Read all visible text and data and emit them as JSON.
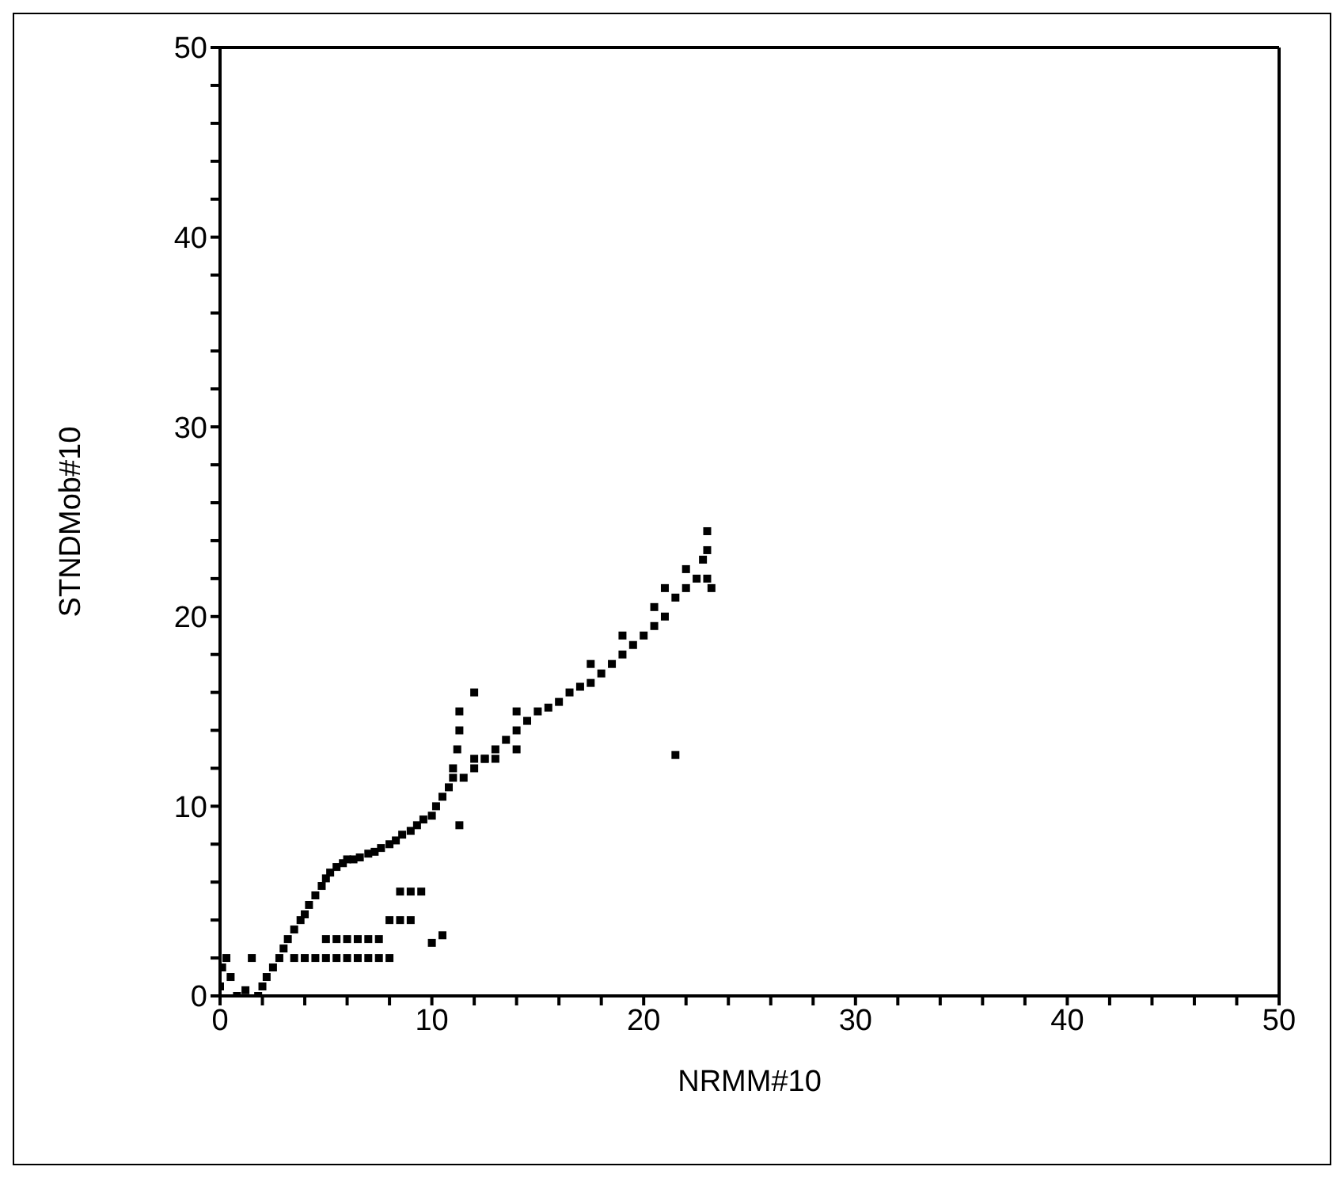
{
  "chart_data": {
    "type": "scatter",
    "xlabel": "NRMM#10",
    "ylabel": "STNDMob#10",
    "x": [
      0,
      0.1,
      0.3,
      0.5,
      0.8,
      1.2,
      1.5,
      1.8,
      2,
      2.2,
      2.5,
      2.8,
      3,
      3.2,
      3.5,
      3.8,
      4,
      4.2,
      4.5,
      4.8,
      5,
      5.2,
      5.5,
      5.8,
      6,
      6.3,
      6.6,
      7,
      7.3,
      7.6,
      8,
      8.3,
      8.6,
      9,
      9.3,
      9.6,
      10,
      10.2,
      10.5,
      10.8,
      11,
      11.2,
      11.3,
      11.3,
      11.3,
      11.5,
      12,
      12.5,
      13,
      13.5,
      14,
      14,
      14,
      14.5,
      15,
      15.5,
      16,
      16.5,
      17,
      17.5,
      18,
      18.5,
      19,
      19,
      19.5,
      20,
      20.5,
      20.5,
      21,
      21,
      21.5,
      22,
      22,
      22.5,
      22.8,
      23,
      23,
      23.2,
      3.5,
      4,
      4.5,
      5,
      5.5,
      6,
      6.5,
      7,
      7.5,
      8,
      5,
      5.5,
      6,
      6.5,
      7,
      7.5,
      8,
      8.5,
      9,
      8.5,
      9,
      9.5,
      10,
      10.5,
      11,
      12,
      12.5,
      13,
      21.5,
      17.5,
      12,
      23
    ],
    "values": [
      0.5,
      1.5,
      2,
      1,
      0,
      0.3,
      2,
      0,
      0.5,
      1,
      1.5,
      2,
      2.5,
      3,
      3.5,
      4,
      4.3,
      4.8,
      5.3,
      5.8,
      6.2,
      6.5,
      6.8,
      7,
      7.2,
      7.2,
      7.3,
      7.5,
      7.6,
      7.8,
      8,
      8.2,
      8.5,
      8.7,
      9,
      9.3,
      9.5,
      10,
      10.5,
      11,
      12,
      13,
      14,
      15,
      9,
      11.5,
      12,
      12.5,
      13,
      13.5,
      13,
      14,
      15,
      14.5,
      15,
      15.2,
      15.5,
      16,
      16.3,
      16.5,
      17,
      17.5,
      18,
      19,
      18.5,
      19,
      19.5,
      20.5,
      20,
      21.5,
      21,
      21.5,
      22.5,
      22,
      23,
      23.5,
      24.5,
      21.5,
      2,
      2,
      2,
      2,
      2,
      2,
      2,
      2,
      2,
      2,
      3,
      3,
      3,
      3,
      3,
      3,
      4,
      4,
      4,
      5.5,
      5.5,
      5.5,
      2.8,
      3.2,
      11.5,
      12.5,
      12.5,
      12.5,
      12.7,
      17.5,
      16,
      22
    ],
    "color": "#000000",
    "marker": "square",
    "xlim": [
      0,
      50
    ],
    "ylim": [
      0,
      50
    ],
    "xticks": [
      0,
      {
        "value": 2,
        "label": null
      },
      {
        "value": 4,
        "label": null
      },
      {
        "value": 6,
        "label": null
      },
      {
        "value": 8,
        "label": null
      },
      10,
      {
        "value": 12,
        "label": null
      },
      {
        "value": 14,
        "label": null
      },
      {
        "value": 16,
        "label": null
      },
      {
        "value": 18,
        "label": null
      },
      20,
      {
        "value": 22,
        "label": null
      },
      {
        "value": 24,
        "label": null
      },
      {
        "value": 26,
        "label": null
      },
      {
        "value": 28,
        "label": null
      },
      30,
      {
        "value": 32,
        "label": null
      },
      {
        "value": 34,
        "label": null
      },
      {
        "value": 36,
        "label": null
      },
      {
        "value": 38,
        "label": null
      },
      40,
      {
        "value": 42,
        "label": null
      },
      {
        "value": 44,
        "label": null
      },
      {
        "value": 46,
        "label": null
      },
      {
        "value": 48,
        "label": null
      },
      50
    ],
    "yticks": [
      0,
      {
        "value": 2,
        "label": null
      },
      {
        "value": 4,
        "label": null
      },
      {
        "value": 6,
        "label": null
      },
      {
        "value": 8,
        "label": null
      },
      10,
      {
        "value": 12,
        "label": null
      },
      {
        "value": 14,
        "label": null
      },
      {
        "value": 16,
        "label": null
      },
      {
        "value": 18,
        "label": null
      },
      20,
      {
        "value": 22,
        "label": null
      },
      {
        "value": 24,
        "label": null
      },
      {
        "value": 26,
        "label": null
      },
      {
        "value": 28,
        "label": null
      },
      30,
      {
        "value": 32,
        "label": null
      },
      {
        "value": 34,
        "label": null
      },
      {
        "value": 36,
        "label": null
      },
      {
        "value": 38,
        "label": null
      },
      40,
      {
        "value": 42,
        "label": null
      },
      {
        "value": 44,
        "label": null
      },
      {
        "value": 46,
        "label": null
      },
      {
        "value": 48,
        "label": null
      },
      50
    ]
  }
}
